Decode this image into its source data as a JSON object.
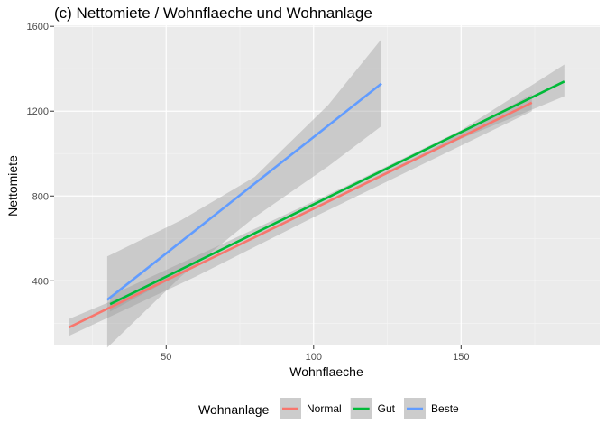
{
  "chart_data": {
    "type": "line",
    "title": "(c) Nettomiete / Wohnflaeche und Wohnanlage",
    "xlabel": "Wohnflaeche",
    "ylabel": "Nettomiete",
    "xlim": [
      12,
      197
    ],
    "ylim": [
      95,
      1605
    ],
    "xticks": [
      50,
      100,
      150
    ],
    "yticks": [
      400,
      800,
      1200,
      1600
    ],
    "x_minor": [
      25,
      75,
      125,
      175
    ],
    "y_minor": [
      200,
      600,
      1000,
      1400
    ],
    "grid": true,
    "legend": {
      "title": "Wohnanlage",
      "position": "bottom"
    },
    "series": [
      {
        "name": "Normal",
        "color": "#F8766D",
        "x": [
          17,
          174
        ],
        "y": [
          180,
          1240
        ],
        "band": {
          "x": [
            17,
            60,
            100,
            140,
            174
          ],
          "lower": [
            140,
            420,
            700,
            970,
            1200
          ],
          "upper": [
            220,
            470,
            745,
            1020,
            1280
          ]
        }
      },
      {
        "name": "Gut",
        "color": "#00BA38",
        "x": [
          31,
          185
        ],
        "y": [
          290,
          1340
        ],
        "band": {
          "x": [
            31,
            70,
            110,
            150,
            185
          ],
          "lower": [
            255,
            545,
            810,
            1070,
            1270
          ],
          "upper": [
            330,
            580,
            840,
            1110,
            1420
          ]
        }
      },
      {
        "name": "Beste",
        "color": "#619CFF",
        "x": [
          30,
          123
        ],
        "y": [
          310,
          1330
        ],
        "band": {
          "x": [
            30,
            55,
            80,
            105,
            123
          ],
          "lower": [
            85,
            420,
            700,
            940,
            1130
          ],
          "upper": [
            515,
            685,
            890,
            1230,
            1540
          ]
        }
      }
    ]
  }
}
